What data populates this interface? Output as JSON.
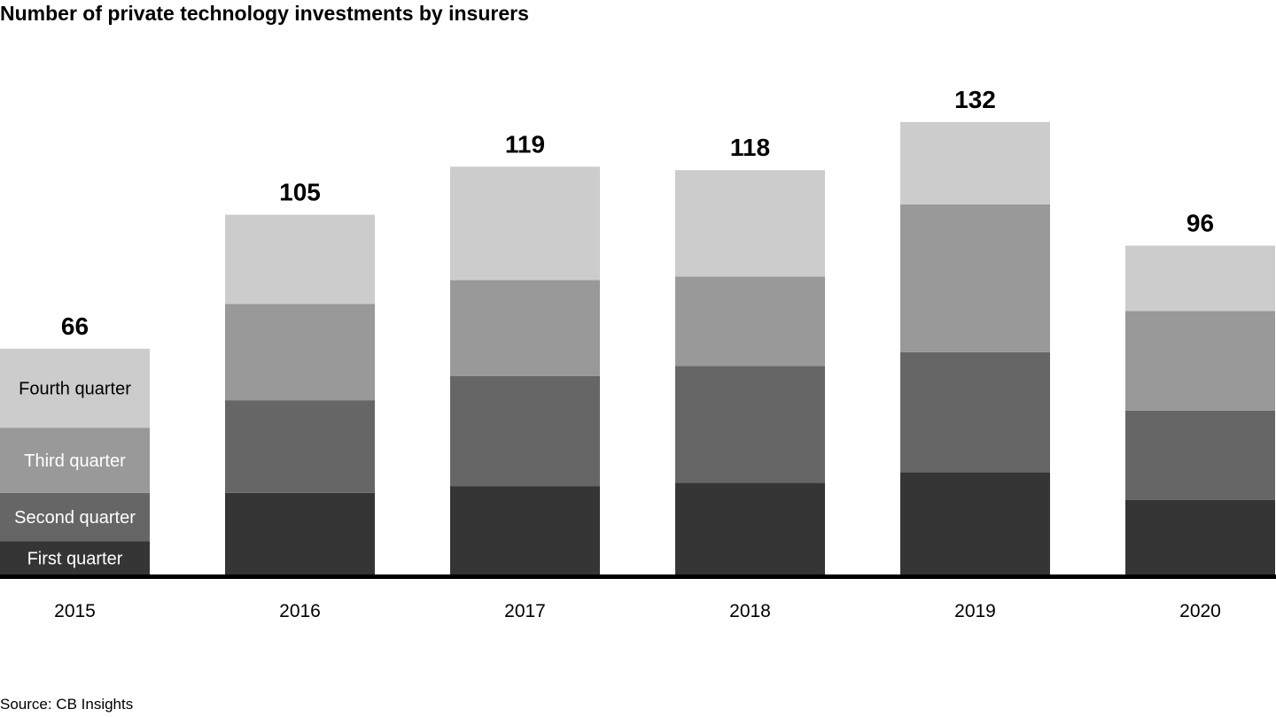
{
  "chart_data": {
    "type": "bar",
    "stacked": true,
    "title": "Number of private technology investments by insurers",
    "source": "Source: CB Insights",
    "categories": [
      "2015",
      "2016",
      "2017",
      "2018",
      "2019",
      "2020"
    ],
    "totals": [
      66,
      105,
      119,
      118,
      132,
      96
    ],
    "series": [
      {
        "name": "First quarter",
        "color": "#353535",
        "label_color": "#ffffff",
        "values": [
          10,
          24,
          26,
          27,
          30,
          22
        ]
      },
      {
        "name": "Second quarter",
        "color": "#666666",
        "label_color": "#ffffff",
        "values": [
          14,
          27,
          32,
          34,
          35,
          26
        ]
      },
      {
        "name": "Third quarter",
        "color": "#999999",
        "label_color": "#ffffff",
        "values": [
          19,
          28,
          28,
          26,
          43,
          29
        ]
      },
      {
        "name": "Fourth quarter",
        "color": "#cccccc",
        "label_color": "#000000",
        "values": [
          23,
          26,
          33,
          31,
          24,
          19
        ]
      }
    ],
    "legend": "inside first bar",
    "grid": false,
    "ylim": [
      0,
      140
    ]
  }
}
